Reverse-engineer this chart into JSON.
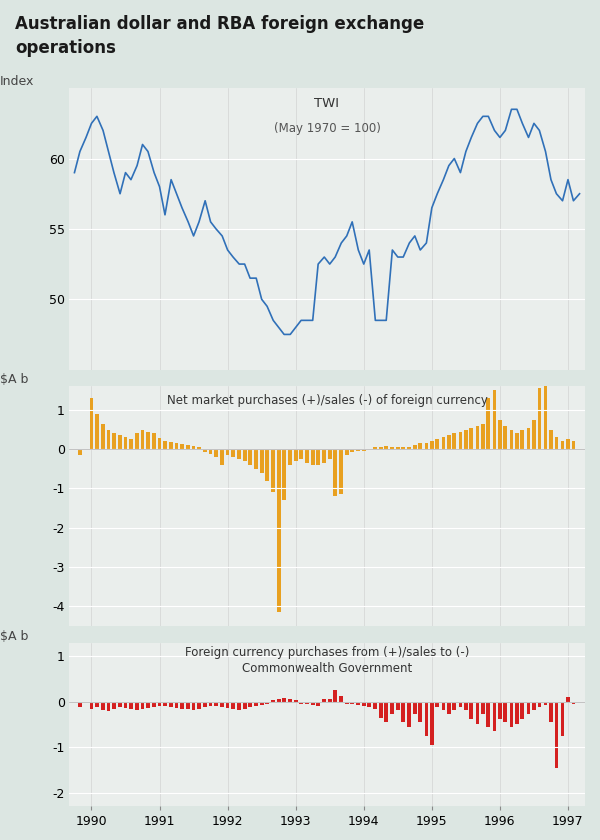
{
  "title": "Australian dollar and RBA foreign exchange\noperations",
  "title_bg_color": "#c8d4d0",
  "bg_color": "#dce6e2",
  "panel_bg_color": "#eaeeec",
  "twi_label": "TWI",
  "twi_subtitle": "(May 1970 = 100)",
  "twi_ylabel": "Index",
  "twi_ylim": [
    45,
    65
  ],
  "twi_yticks": [
    50,
    55,
    60
  ],
  "twi_ytick_labels": [
    "50",
    "55",
    "60"
  ],
  "bar1_ylabel": "$A b",
  "bar1_label": "Net market purchases (+)/sales (-) of foreign currency",
  "bar1_ylim": [
    -4.5,
    1.6
  ],
  "bar1_yticks": [
    1,
    0,
    -1,
    -2,
    -3,
    -4
  ],
  "bar1_color": "#E8A020",
  "bar2_ylabel": "$A b",
  "bar2_label_line1": "Foreign currency purchases from (+)/sales to (-)",
  "bar2_label_line2": "Commonwealth Government",
  "bar2_ylim": [
    -2.3,
    1.3
  ],
  "bar2_yticks": [
    1,
    0,
    -1,
    -2
  ],
  "bar2_color": "#D42020",
  "xlim_start": 1989.67,
  "xlim_end": 1997.25,
  "xticks": [
    1990,
    1991,
    1992,
    1993,
    1994,
    1995,
    1996,
    1997
  ],
  "twi_line_color": "#3070B8",
  "twi_x": [
    1989.75,
    1989.83,
    1989.92,
    1990.0,
    1990.08,
    1990.17,
    1990.25,
    1990.33,
    1990.42,
    1990.5,
    1990.58,
    1990.67,
    1990.75,
    1990.83,
    1990.92,
    1991.0,
    1991.08,
    1991.17,
    1991.25,
    1991.33,
    1991.42,
    1991.5,
    1991.58,
    1991.67,
    1991.75,
    1991.83,
    1991.92,
    1992.0,
    1992.08,
    1992.17,
    1992.25,
    1992.33,
    1992.42,
    1992.5,
    1992.58,
    1992.67,
    1992.75,
    1992.83,
    1992.92,
    1993.0,
    1993.08,
    1993.17,
    1993.25,
    1993.33,
    1993.42,
    1993.5,
    1993.58,
    1993.67,
    1993.75,
    1993.83,
    1993.92,
    1994.0,
    1994.08,
    1994.17,
    1994.25,
    1994.33,
    1994.42,
    1994.5,
    1994.58,
    1994.67,
    1994.75,
    1994.83,
    1994.92,
    1995.0,
    1995.08,
    1995.17,
    1995.25,
    1995.33,
    1995.42,
    1995.5,
    1995.58,
    1995.67,
    1995.75,
    1995.83,
    1995.92,
    1996.0,
    1996.08,
    1996.17,
    1996.25,
    1996.33,
    1996.42,
    1996.5,
    1996.58,
    1996.67,
    1996.75,
    1996.83,
    1996.92,
    1997.0,
    1997.08,
    1997.17
  ],
  "twi_y": [
    59.0,
    60.5,
    61.5,
    62.5,
    63.0,
    62.0,
    60.5,
    59.0,
    57.5,
    59.0,
    58.5,
    59.5,
    61.0,
    60.5,
    59.0,
    58.0,
    56.0,
    58.5,
    57.5,
    56.5,
    55.5,
    54.5,
    55.5,
    57.0,
    55.5,
    55.0,
    54.5,
    53.5,
    53.0,
    52.5,
    52.5,
    51.5,
    51.5,
    50.0,
    49.5,
    48.5,
    48.0,
    47.5,
    47.5,
    48.0,
    48.5,
    48.5,
    48.5,
    52.5,
    53.0,
    52.5,
    53.0,
    54.0,
    54.5,
    55.5,
    53.5,
    52.5,
    53.5,
    48.5,
    48.5,
    48.5,
    53.5,
    53.0,
    53.0,
    54.0,
    54.5,
    53.5,
    54.0,
    56.5,
    57.5,
    58.5,
    59.5,
    60.0,
    59.0,
    60.5,
    61.5,
    62.5,
    63.0,
    63.0,
    62.0,
    61.5,
    62.0,
    63.5,
    63.5,
    62.5,
    61.5,
    62.5,
    62.0,
    60.5,
    58.5,
    57.5,
    57.0,
    58.5,
    57.0,
    57.5
  ],
  "bar1_x": [
    1989.83,
    1990.0,
    1990.08,
    1990.17,
    1990.25,
    1990.33,
    1990.42,
    1990.5,
    1990.58,
    1990.67,
    1990.75,
    1990.83,
    1990.92,
    1991.0,
    1991.08,
    1991.17,
    1991.25,
    1991.33,
    1991.42,
    1991.5,
    1991.58,
    1991.67,
    1991.75,
    1991.83,
    1991.92,
    1992.0,
    1992.08,
    1992.17,
    1992.25,
    1992.33,
    1992.42,
    1992.5,
    1992.58,
    1992.67,
    1992.75,
    1992.83,
    1992.92,
    1993.0,
    1993.08,
    1993.17,
    1993.25,
    1993.33,
    1993.42,
    1993.5,
    1993.58,
    1993.67,
    1993.75,
    1993.83,
    1993.92,
    1994.0,
    1994.08,
    1994.17,
    1994.25,
    1994.33,
    1994.42,
    1994.5,
    1994.58,
    1994.67,
    1994.75,
    1994.83,
    1994.92,
    1995.0,
    1995.08,
    1995.17,
    1995.25,
    1995.33,
    1995.42,
    1995.5,
    1995.58,
    1995.67,
    1995.75,
    1995.83,
    1995.92,
    1996.0,
    1996.08,
    1996.17,
    1996.25,
    1996.33,
    1996.42,
    1996.5,
    1996.58,
    1996.67,
    1996.75,
    1996.83,
    1996.92,
    1997.0,
    1997.08
  ],
  "bar1_y": [
    -0.15,
    1.3,
    0.9,
    0.65,
    0.5,
    0.4,
    0.35,
    0.3,
    0.25,
    0.4,
    0.5,
    0.45,
    0.4,
    0.28,
    0.22,
    0.18,
    0.15,
    0.12,
    0.1,
    0.08,
    0.06,
    -0.08,
    -0.12,
    -0.2,
    -0.4,
    -0.15,
    -0.2,
    -0.25,
    -0.3,
    -0.4,
    -0.5,
    -0.6,
    -0.8,
    -1.1,
    -4.15,
    -1.3,
    -0.4,
    -0.3,
    -0.25,
    -0.35,
    -0.4,
    -0.4,
    -0.35,
    -0.25,
    -1.2,
    -1.15,
    -0.15,
    -0.08,
    -0.05,
    -0.05,
    0.0,
    0.05,
    0.05,
    0.08,
    0.05,
    0.05,
    0.05,
    0.05,
    0.1,
    0.15,
    0.15,
    0.2,
    0.25,
    0.3,
    0.35,
    0.4,
    0.45,
    0.5,
    0.55,
    0.6,
    0.65,
    1.3,
    1.5,
    0.75,
    0.6,
    0.5,
    0.4,
    0.5,
    0.55,
    0.75,
    1.55,
    1.65,
    0.5,
    0.3,
    0.2,
    0.25,
    0.2
  ],
  "bar2_x": [
    1989.83,
    1990.0,
    1990.08,
    1990.17,
    1990.25,
    1990.33,
    1990.42,
    1990.5,
    1990.58,
    1990.67,
    1990.75,
    1990.83,
    1990.92,
    1991.0,
    1991.08,
    1991.17,
    1991.25,
    1991.33,
    1991.42,
    1991.5,
    1991.58,
    1991.67,
    1991.75,
    1991.83,
    1991.92,
    1992.0,
    1992.08,
    1992.17,
    1992.25,
    1992.33,
    1992.42,
    1992.5,
    1992.58,
    1992.67,
    1992.75,
    1992.83,
    1992.92,
    1993.0,
    1993.08,
    1993.17,
    1993.25,
    1993.33,
    1993.42,
    1993.5,
    1993.58,
    1993.67,
    1993.75,
    1993.83,
    1993.92,
    1994.0,
    1994.08,
    1994.17,
    1994.25,
    1994.33,
    1994.42,
    1994.5,
    1994.58,
    1994.67,
    1994.75,
    1994.83,
    1994.92,
    1995.0,
    1995.08,
    1995.17,
    1995.25,
    1995.33,
    1995.42,
    1995.5,
    1995.58,
    1995.67,
    1995.75,
    1995.83,
    1995.92,
    1996.0,
    1996.08,
    1996.17,
    1996.25,
    1996.33,
    1996.42,
    1996.5,
    1996.58,
    1996.67,
    1996.75,
    1996.83,
    1996.92,
    1997.0,
    1997.08
  ],
  "bar2_y": [
    -0.12,
    -0.15,
    -0.12,
    -0.18,
    -0.2,
    -0.15,
    -0.12,
    -0.14,
    -0.15,
    -0.18,
    -0.16,
    -0.14,
    -0.12,
    -0.1,
    -0.1,
    -0.12,
    -0.14,
    -0.15,
    -0.16,
    -0.18,
    -0.15,
    -0.12,
    -0.1,
    -0.1,
    -0.12,
    -0.14,
    -0.16,
    -0.18,
    -0.15,
    -0.12,
    -0.1,
    -0.08,
    -0.06,
    0.04,
    0.06,
    0.08,
    0.06,
    0.04,
    -0.04,
    -0.06,
    -0.08,
    -0.1,
    0.05,
    0.06,
    0.25,
    0.12,
    -0.04,
    -0.06,
    -0.08,
    -0.1,
    -0.12,
    -0.15,
    -0.35,
    -0.45,
    -0.28,
    -0.18,
    -0.45,
    -0.55,
    -0.28,
    -0.45,
    -0.75,
    -0.95,
    -0.12,
    -0.18,
    -0.28,
    -0.18,
    -0.12,
    -0.18,
    -0.38,
    -0.48,
    -0.28,
    -0.55,
    -0.65,
    -0.38,
    -0.45,
    -0.55,
    -0.48,
    -0.38,
    -0.28,
    -0.18,
    -0.12,
    -0.08,
    -0.45,
    -1.45,
    -0.75,
    0.1,
    -0.05
  ]
}
